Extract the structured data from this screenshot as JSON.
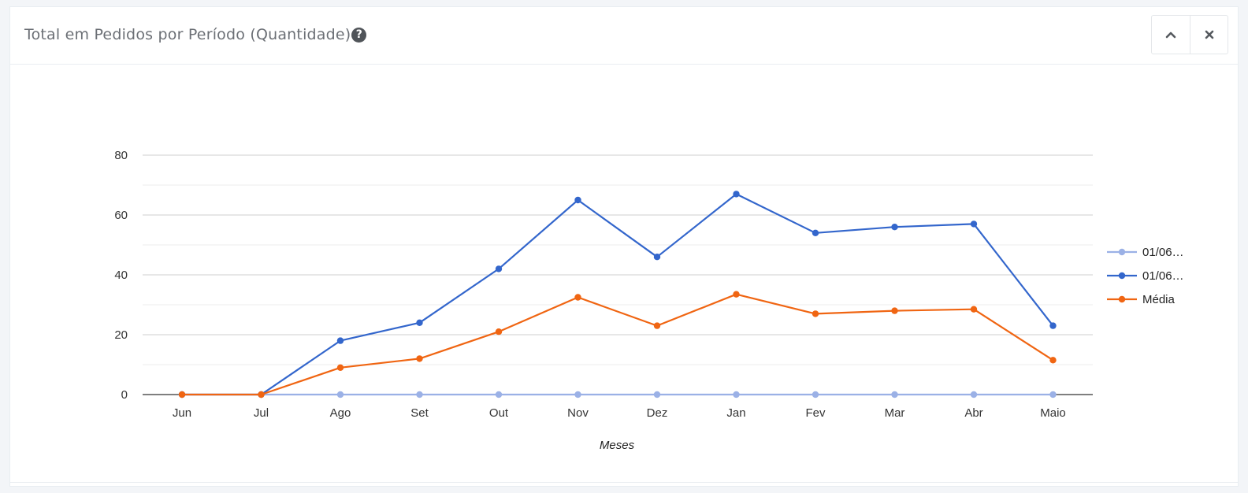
{
  "panel": {
    "title": "Total em Pedidos por Período (Quantidade)",
    "help_glyph": "?",
    "collapse_icon": "chevron-up-icon",
    "close_icon": "close-icon"
  },
  "colors": {
    "series_light": "#9bb1e6",
    "series_blue": "#3366cc",
    "series_orange": "#f06512",
    "grid": "#cfcfcf",
    "grid_minor": "#ececec",
    "baseline": "#333333"
  },
  "chart_data": {
    "type": "line",
    "title": "",
    "xlabel": "Meses",
    "ylabel": "",
    "ylim": [
      0,
      80
    ],
    "yticks": [
      0,
      20,
      40,
      60,
      80
    ],
    "grid": true,
    "legend_position": "right",
    "categories": [
      "Jun",
      "Jul",
      "Ago",
      "Set",
      "Out",
      "Nov",
      "Dez",
      "Jan",
      "Fev",
      "Mar",
      "Abr",
      "Maio"
    ],
    "series": [
      {
        "name": "01/06…",
        "color": "#9bb1e6",
        "values": [
          0,
          0,
          0,
          0,
          0,
          0,
          0,
          0,
          0,
          0,
          0,
          0
        ]
      },
      {
        "name": "01/06…",
        "color": "#3366cc",
        "values": [
          0,
          0,
          18,
          24,
          42,
          65,
          46,
          67,
          54,
          56,
          57,
          23
        ]
      },
      {
        "name": "Média",
        "color": "#f06512",
        "values": [
          0,
          0,
          9,
          12,
          21,
          32.5,
          23,
          33.5,
          27,
          28,
          28.5,
          11.5
        ]
      }
    ]
  }
}
